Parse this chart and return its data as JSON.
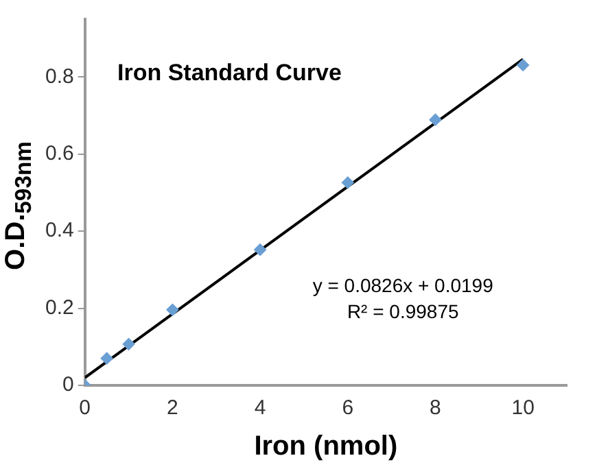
{
  "chart_data": {
    "type": "scatter",
    "title": "Iron Standard Curve",
    "xlabel": "Iron (nmol)",
    "ylabel": "O.D.$_{593nm}$",
    "series": [
      {
        "color": "#6a9fd4",
        "marker": "diamond",
        "x": [
          0,
          0.5,
          1,
          2,
          4,
          6,
          8,
          10
        ],
        "values": [
          0,
          0.07,
          0.107,
          0.196,
          0.352,
          0.526,
          0.689,
          0.831
        ]
      },
      {
        "type": "line",
        "color": "#000000",
        "marker": "none",
        "x": [
          0,
          10
        ],
        "values": [
          0.02,
          0.846
        ]
      }
    ],
    "xlim": [
      0,
      11
    ],
    "xticks": [
      0,
      2,
      4,
      6,
      8,
      10
    ],
    "ylim": [
      0,
      0.95
    ],
    "yticks": [
      0,
      0.2,
      0.4,
      0.6,
      0.8
    ],
    "annotations": [
      "y = 0.0826x + 0.0199",
      "R² = 0.99875"
    ],
    "grid": false,
    "legend": false
  }
}
